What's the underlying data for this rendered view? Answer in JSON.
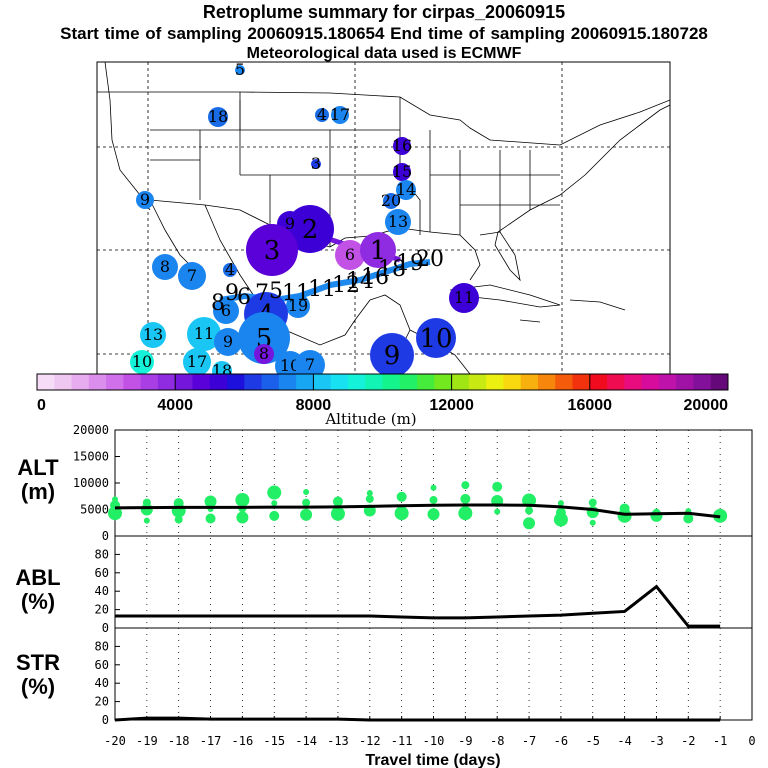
{
  "header": {
    "title": "Retroplume summary for cirpas_20060915",
    "subtitle": "Start time of sampling 20060915.180654     End time of sampling 20060915.180728",
    "meteo": "Meteorological data used is ECMWF"
  },
  "colorbar": {
    "label": "Altitude (m)",
    "ticks": [
      "0",
      "4000",
      "8000",
      "12000",
      "16000",
      "20000"
    ],
    "colors": [
      "#f6dcf6",
      "#efc8f2",
      "#e6acef",
      "#dc8eec",
      "#d070ea",
      "#c252e6",
      "#a83ee3",
      "#8f2be0",
      "#7416dc",
      "#5a00d8",
      "#3c00d6",
      "#1e10dc",
      "#1e3ae4",
      "#1a60ea",
      "#1a84ef",
      "#16a6f2",
      "#1ac6f4",
      "#18e2f2",
      "#14f2da",
      "#12f4b4",
      "#14f48c",
      "#22f066",
      "#46ec3c",
      "#74e81e",
      "#a0e614",
      "#c8ea12",
      "#ecf010",
      "#f8d80e",
      "#f8b00e",
      "#f6860c",
      "#f45c0c",
      "#f2320c",
      "#f00c1e",
      "#f00c50",
      "#e80c7e",
      "#d80c9c",
      "#be12aa",
      "#a012a6",
      "#82109a",
      "#64087a"
    ]
  },
  "map": {
    "markers": [
      {
        "label": "5",
        "r": 5,
        "color": "#1a84ef",
        "big": false
      },
      {
        "label": "18",
        "r": 10,
        "color": "#1a6ce6",
        "big": false
      },
      {
        "label": "4",
        "r": 7,
        "color": "#1a6ce6",
        "big": false
      },
      {
        "label": "17",
        "r": 9,
        "color": "#1a84ef",
        "big": false
      },
      {
        "label": "3",
        "r": 5,
        "color": "#1e3ae4",
        "big": false
      },
      {
        "label": "16",
        "r": 9,
        "color": "#3c00d6",
        "big": false
      },
      {
        "label": "15",
        "r": 9,
        "color": "#3c00d6",
        "big": false
      },
      {
        "label": "14",
        "r": 10,
        "color": "#1a84ef",
        "big": false
      },
      {
        "label": "9",
        "r": 9,
        "color": "#1a84ef",
        "big": false
      },
      {
        "label": "20",
        "r": 8,
        "color": "#1a6ce6",
        "big": false
      },
      {
        "label": "13",
        "r": 13,
        "color": "#1a84ef",
        "big": false
      },
      {
        "label": "2",
        "r": 24,
        "color": "#3c00d6",
        "big": true
      },
      {
        "label": "9",
        "r": 13,
        "color": "#3c00d6",
        "big": false
      },
      {
        "label": "3",
        "r": 26,
        "color": "#5a00d8",
        "big": true
      },
      {
        "label": "6",
        "r": 15,
        "color": "#c252e6",
        "big": false
      },
      {
        "label": "1",
        "r": 18,
        "color": "#8f2be0",
        "big": true
      },
      {
        "label": "8",
        "r": 13,
        "color": "#1a84ef",
        "big": false
      },
      {
        "label": "7",
        "r": 14,
        "color": "#1a84ef",
        "big": false
      },
      {
        "label": "4",
        "r": 7,
        "color": "#1a6ce6",
        "big": false
      },
      {
        "label": "11",
        "r": 15,
        "color": "#3c00d6",
        "big": false
      },
      {
        "label": "6",
        "r": 13,
        "color": "#1a84ef",
        "big": false
      },
      {
        "label": "19",
        "r": 12,
        "color": "#1a84ef",
        "big": false
      },
      {
        "label": "4",
        "r": 22,
        "color": "#1e3ae4",
        "big": true
      },
      {
        "label": "13",
        "r": 13,
        "color": "#1ac6f4",
        "big": false
      },
      {
        "label": "11",
        "r": 17,
        "color": "#1ac6f4",
        "big": false
      },
      {
        "label": "9",
        "r": 14,
        "color": "#1a84ef",
        "big": false
      },
      {
        "label": "5",
        "r": 26,
        "color": "#1a84ef",
        "big": true
      },
      {
        "label": "8",
        "r": 10,
        "color": "#7416dc",
        "big": false
      },
      {
        "label": "10",
        "r": 20,
        "color": "#1e3ae4",
        "big": true
      },
      {
        "label": "9",
        "r": 22,
        "color": "#1e3ae4",
        "big": true
      },
      {
        "label": "10",
        "r": 12,
        "color": "#14f2da",
        "big": false
      },
      {
        "label": "17",
        "r": 14,
        "color": "#1ac6f4",
        "big": false
      },
      {
        "label": "18",
        "r": 10,
        "color": "#1ac6f4",
        "big": false
      },
      {
        "label": "10",
        "r": 15,
        "color": "#1a84ef",
        "big": false
      },
      {
        "label": "7",
        "r": 15,
        "color": "#1a84ef",
        "big": false
      }
    ],
    "track_labels": [
      {
        "text": "8"
      },
      {
        "text": "9"
      },
      {
        "text": "6"
      },
      {
        "text": "7"
      },
      {
        "text": "5"
      },
      {
        "text": "11"
      },
      {
        "text": "11"
      },
      {
        "text": "12"
      },
      {
        "text": "14"
      },
      {
        "text": "16"
      },
      {
        "text": "18"
      },
      {
        "text": "19"
      },
      {
        "text": "20"
      }
    ]
  },
  "chart_data": [
    {
      "type": "scatter",
      "panel": "ALT",
      "ylabel": "ALT\n(m)",
      "ylim": [
        0,
        20000
      ],
      "yticks": [
        "0",
        "5000",
        "10000",
        "15000",
        "20000"
      ],
      "xlim": [
        -20,
        0
      ],
      "series": [
        {
          "name": "median altitude (line)",
          "x": [
            -20,
            -19,
            -18,
            -17,
            -16,
            -15,
            -14,
            -13,
            -12,
            -11,
            -10,
            -9,
            -8,
            -7,
            -6,
            -5,
            -4,
            -3,
            -2,
            -1
          ],
          "y": [
            5300,
            5350,
            5400,
            5400,
            5400,
            5450,
            5450,
            5500,
            5600,
            5700,
            5800,
            5850,
            5850,
            5800,
            5500,
            5000,
            4100,
            4200,
            4300,
            3600
          ]
        },
        {
          "name": "cluster altitudes (green dots)",
          "points": [
            [
              -20,
              6900
            ],
            [
              -20,
              5800
            ],
            [
              -20,
              4300
            ],
            [
              -19,
              6300
            ],
            [
              -19,
              5000
            ],
            [
              -19,
              2900
            ],
            [
              -18,
              6200
            ],
            [
              -18,
              4800
            ],
            [
              -18,
              3100
            ],
            [
              -17,
              6500
            ],
            [
              -17,
              5100
            ],
            [
              -17,
              3300
            ],
            [
              -16,
              6800
            ],
            [
              -16,
              5200
            ],
            [
              -16,
              3500
            ],
            [
              -15,
              6200
            ],
            [
              -15,
              3800
            ],
            [
              -15,
              8200
            ],
            [
              -14,
              6300
            ],
            [
              -14,
              4000
            ],
            [
              -14,
              8300
            ],
            [
              -13,
              6500
            ],
            [
              -13,
              4200
            ],
            [
              -12,
              7000
            ],
            [
              -12,
              4800
            ],
            [
              -12,
              8100
            ],
            [
              -11,
              7400
            ],
            [
              -11,
              4300
            ],
            [
              -10,
              6800
            ],
            [
              -10,
              4100
            ],
            [
              -10,
              9100
            ],
            [
              -9,
              7000
            ],
            [
              -9,
              4300
            ],
            [
              -9,
              9600
            ],
            [
              -8,
              6600
            ],
            [
              -8,
              4600
            ],
            [
              -8,
              9300
            ],
            [
              -7,
              6700
            ],
            [
              -7,
              4800
            ],
            [
              -7,
              2400
            ],
            [
              -6,
              6200
            ],
            [
              -6,
              4400
            ],
            [
              -6,
              3100
            ],
            [
              -5,
              6300
            ],
            [
              -5,
              4500
            ],
            [
              -5,
              2500
            ],
            [
              -4,
              5200
            ],
            [
              -4,
              3800
            ],
            [
              -3,
              4400
            ],
            [
              -3,
              3800
            ],
            [
              -2,
              4700
            ],
            [
              -2,
              3300
            ],
            [
              -1,
              3800
            ],
            [
              -1,
              3300
            ]
          ]
        }
      ]
    },
    {
      "type": "line",
      "panel": "ABL",
      "ylabel": "ABL\n(%)",
      "ylim": [
        0,
        100
      ],
      "yticks": [
        "0",
        "20",
        "40",
        "60",
        "80"
      ],
      "x": [
        -20,
        -19,
        -18,
        -17,
        -16,
        -15,
        -14,
        -13,
        -12,
        -11,
        -10,
        -9,
        -8,
        -7,
        -6,
        -5,
        -4,
        -3,
        -2,
        -1
      ],
      "values": [
        13,
        13,
        13,
        13,
        13,
        13,
        13,
        13,
        13,
        12,
        11,
        11,
        12,
        13,
        14,
        16,
        18,
        45,
        2,
        2
      ]
    },
    {
      "type": "line",
      "panel": "STR",
      "ylabel": "STR\n(%)",
      "ylim": [
        0,
        100
      ],
      "yticks": [
        "0",
        "20",
        "40",
        "60",
        "80"
      ],
      "x": [
        -20,
        -19,
        -18,
        -17,
        -16,
        -15,
        -14,
        -13,
        -12,
        -11,
        -10,
        -9,
        -8,
        -7,
        -6,
        -5,
        -4,
        -3,
        -2,
        -1
      ],
      "values": [
        0,
        2,
        2,
        1,
        1,
        1,
        1,
        1,
        0,
        0,
        0,
        0,
        0,
        0,
        0,
        0,
        0,
        0,
        0,
        0
      ]
    }
  ],
  "xaxis": {
    "label": "Travel time (days)",
    "ticks": [
      "-20",
      "-19",
      "-18",
      "-17",
      "-16",
      "-15",
      "-14",
      "-13",
      "-12",
      "-11",
      "-10",
      "-9",
      "-8",
      "-7",
      "-6",
      "-5",
      "-4",
      "-3",
      "-2",
      "-1",
      "0"
    ]
  },
  "palette": {
    "dot_green": "#22ee66",
    "line": "#000000",
    "track": "#1e8aee"
  }
}
